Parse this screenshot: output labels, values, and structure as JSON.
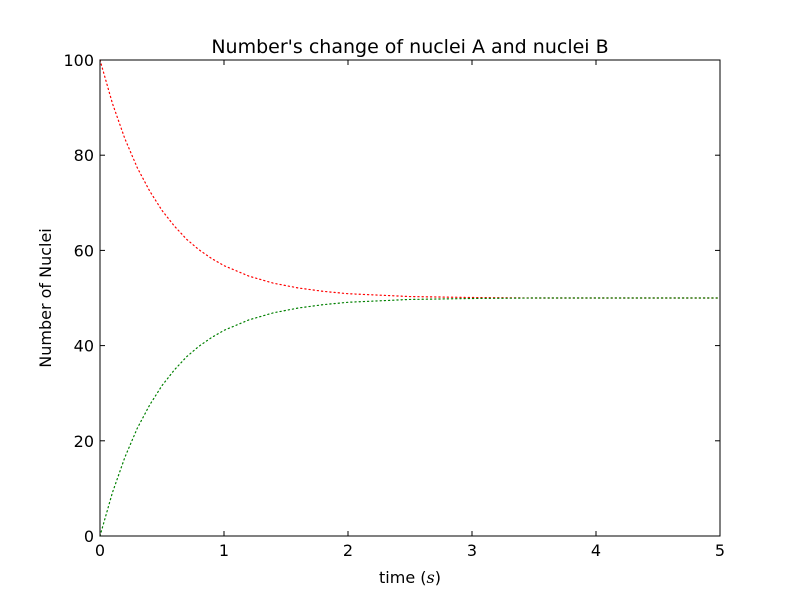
{
  "chart_data": {
    "type": "line",
    "title": "Number's change of nuclei A and nuclei B",
    "xlabel_prefix": "time (",
    "xlabel_var": "s",
    "xlabel_suffix": ")",
    "ylabel": "Number of Nuclei",
    "xlim": [
      0,
      5
    ],
    "ylim": [
      0,
      100
    ],
    "xticks": [
      0,
      1,
      2,
      3,
      4,
      5
    ],
    "yticks": [
      0,
      20,
      40,
      60,
      80,
      100
    ],
    "grid": false,
    "legend": "none",
    "x": [
      0,
      0.1,
      0.2,
      0.3,
      0.4,
      0.5,
      0.6,
      0.7,
      0.8,
      0.9,
      1.0,
      1.2,
      1.4,
      1.6,
      1.8,
      2.0,
      2.25,
      2.5,
      2.75,
      3.0,
      3.5,
      4.0,
      4.5,
      5.0
    ],
    "series": [
      {
        "color": "#ff0000",
        "style": "dotted",
        "values": [
          100,
          90.9,
          83.5,
          77.4,
          72.5,
          68.4,
          65.1,
          62.3,
          60.1,
          58.3,
          56.8,
          54.6,
          53.1,
          52.1,
          51.4,
          50.9,
          50.6,
          50.3,
          50.2,
          50.1,
          50.0,
          50.0,
          50.0,
          50.0
        ]
      },
      {
        "color": "#008000",
        "style": "dotted",
        "values": [
          0,
          9.1,
          16.5,
          22.6,
          27.5,
          31.6,
          34.9,
          37.7,
          39.9,
          41.7,
          43.2,
          45.4,
          46.9,
          47.9,
          48.6,
          49.1,
          49.4,
          49.7,
          49.8,
          49.9,
          50.0,
          50.0,
          50.0,
          50.0
        ]
      }
    ]
  }
}
